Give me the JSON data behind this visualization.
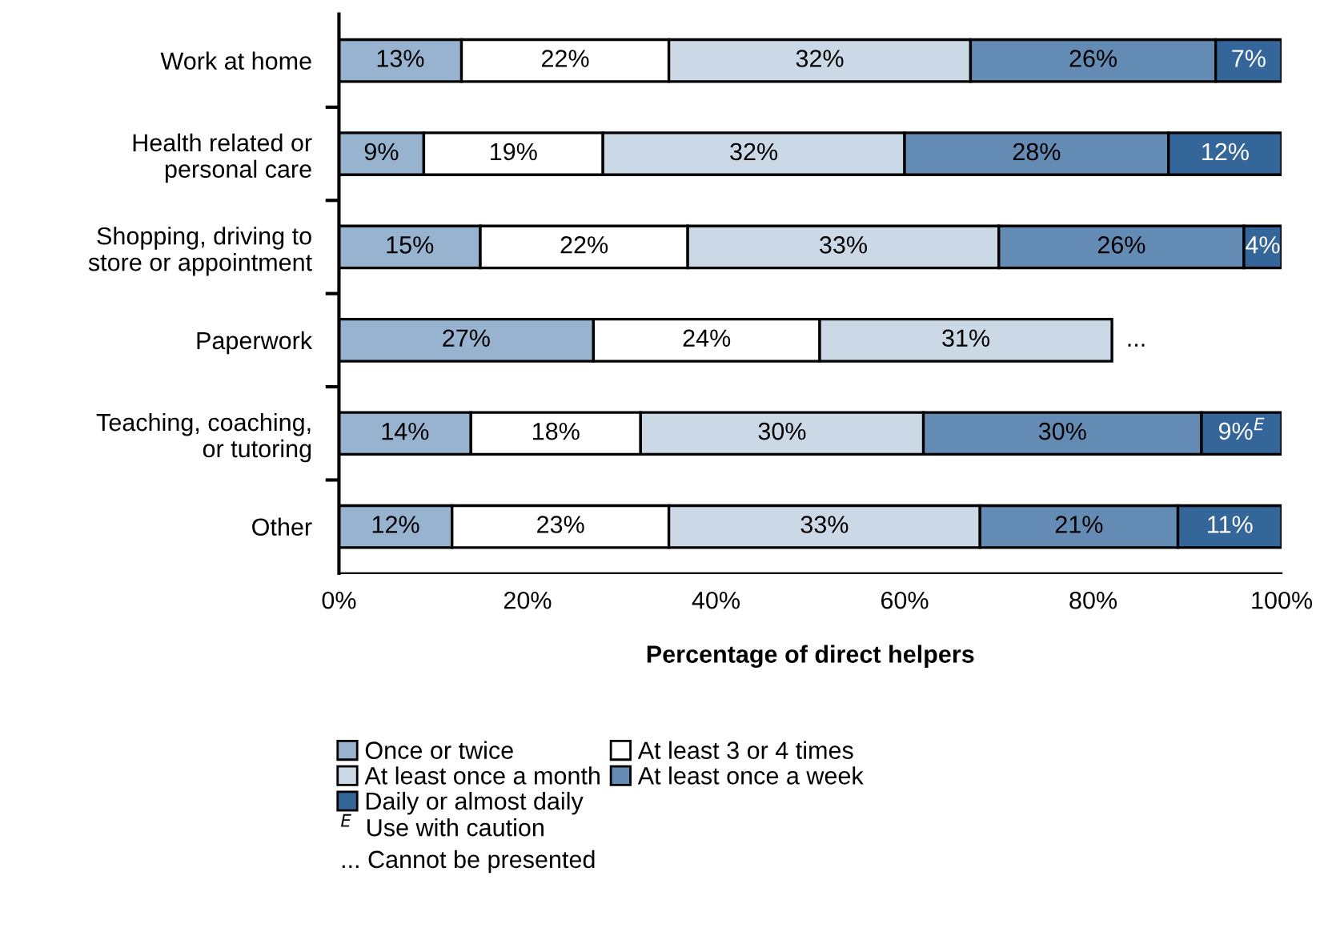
{
  "chart_data": {
    "type": "bar",
    "orientation": "horizontal",
    "stacked": true,
    "categories": [
      "Work at home",
      "Health related or\npersonal care",
      "Shopping, driving to\nstore or appointment",
      "Paperwork",
      "Teaching, coaching,\nor tutoring",
      "Other"
    ],
    "series": [
      {
        "name": "Once or twice",
        "color": "#98b3cf",
        "values": [
          13,
          9,
          15,
          27,
          14,
          12
        ],
        "value_labels": [
          "13%",
          "9%",
          "15%",
          "27%",
          "14%",
          "12%"
        ]
      },
      {
        "name": "At least 3 or 4 times",
        "color": "#ffffff",
        "values": [
          22,
          19,
          22,
          24,
          18,
          23
        ],
        "value_labels": [
          "22%",
          "19%",
          "22%",
          "24%",
          "18%",
          "23%"
        ]
      },
      {
        "name": "At least once a month",
        "color": "#cbd8e5",
        "values": [
          32,
          32,
          33,
          31,
          30,
          33
        ],
        "value_labels": [
          "32%",
          "32%",
          "33%",
          "31%",
          "30%",
          "33%"
        ]
      },
      {
        "name": "At least once a week",
        "color": "#648bb3",
        "values": [
          26,
          28,
          26,
          null,
          29.5,
          21
        ],
        "value_labels": [
          "26%",
          "28%",
          "26%",
          null,
          "30%",
          "21%"
        ]
      },
      {
        "name": "Daily or almost daily",
        "color": "#356699",
        "values": [
          7,
          12,
          4,
          null,
          8.5,
          11
        ],
        "value_labels": [
          "7%",
          "12%",
          "4%",
          null,
          "9%$^{E}$",
          "11%"
        ]
      }
    ],
    "xlim": [
      0,
      100
    ],
    "xticks": [
      {
        "value": 0,
        "label": "0%"
      },
      {
        "value": 20,
        "label": "20%"
      },
      {
        "value": 40,
        "label": "40%"
      },
      {
        "value": 60,
        "label": "60%"
      },
      {
        "value": 80,
        "label": "80%"
      },
      {
        "value": 100,
        "label": "100%"
      }
    ],
    "xlabel": "Percentage of direct helpers",
    "legend": "bottom",
    "grid": false,
    "annotations": [
      "...",
      "$^{E}$  Use with caution",
      "... Cannot be presented"
    ]
  }
}
